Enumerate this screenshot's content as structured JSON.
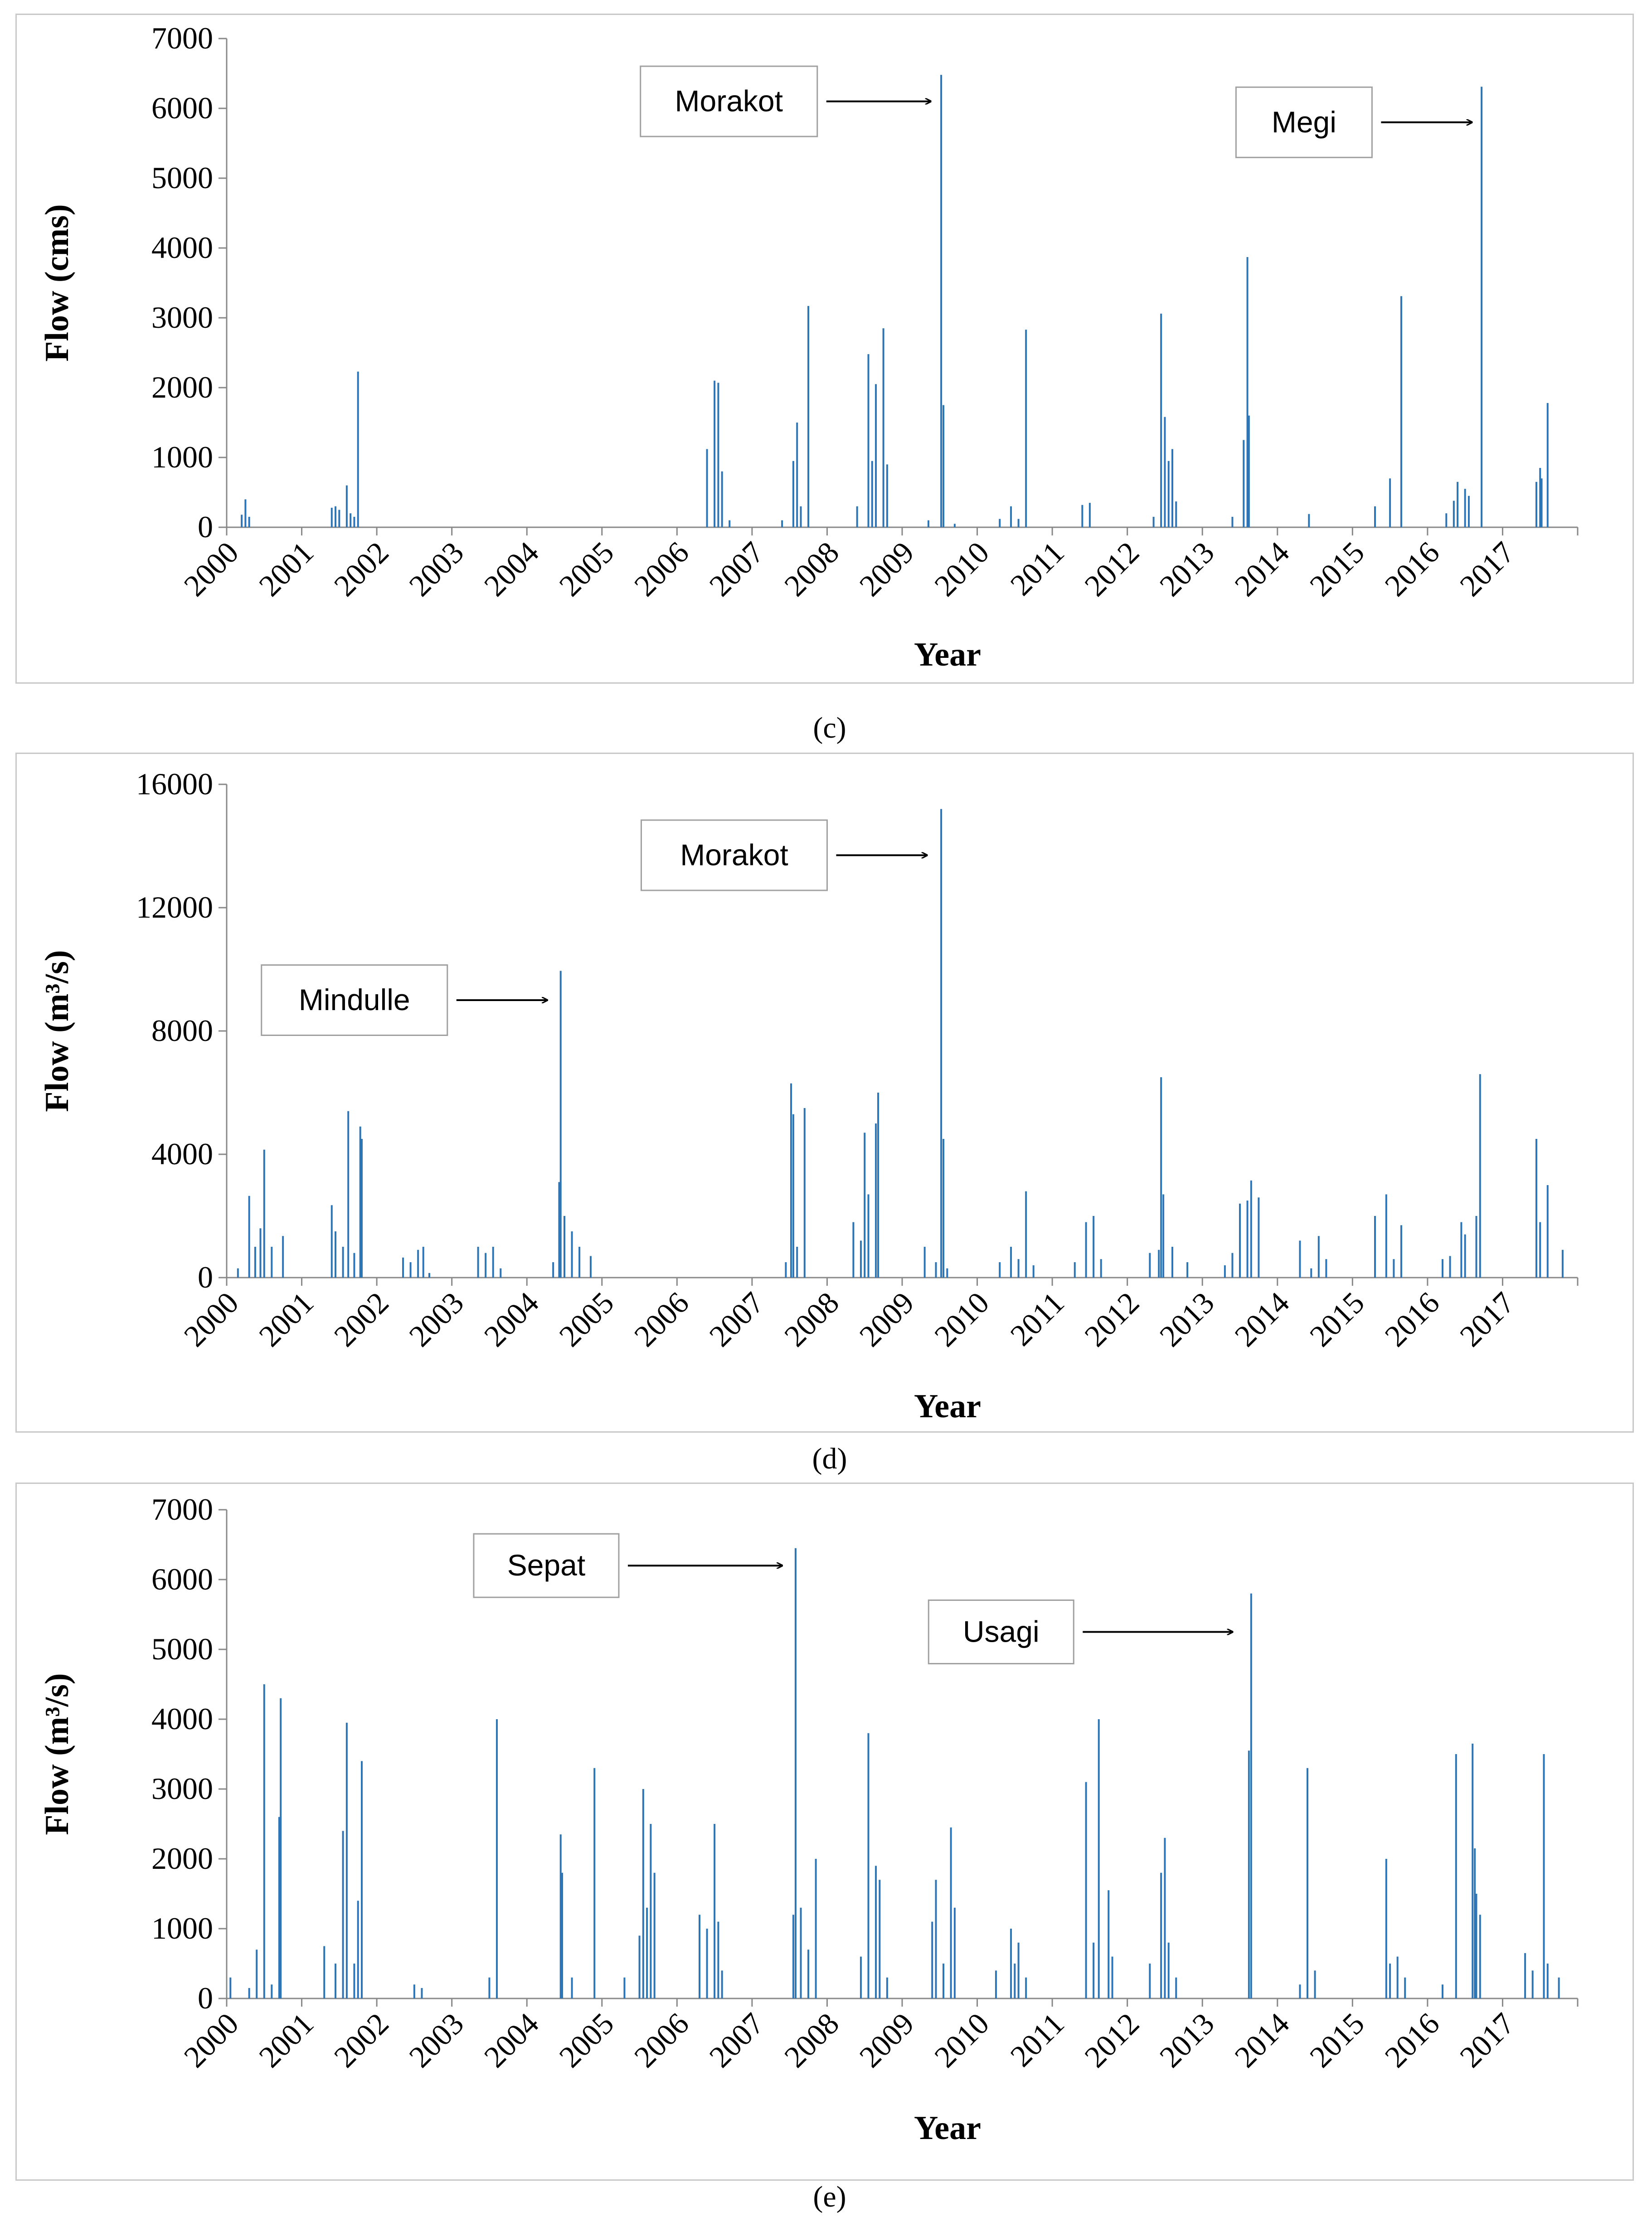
{
  "series_color": "#2e75b6",
  "chart_data": [
    {
      "type": "bar",
      "panel_label": "(c)",
      "xlabel": "Year",
      "ylabel": "Flow (cms)",
      "ylim": [
        0,
        7000
      ],
      "yticks": [
        "0",
        "1000",
        "2000",
        "3000",
        "4000",
        "5000",
        "6000",
        "7000"
      ],
      "xlim": [
        2000,
        2018
      ],
      "year_labels": [
        "2000",
        "2001",
        "2002",
        "2003",
        "2004",
        "2005",
        "2006",
        "2007",
        "2008",
        "2009",
        "2010",
        "2011",
        "2012",
        "2013",
        "2014",
        "2015",
        "2016",
        "2017"
      ],
      "annotations": [
        {
          "text": "Morakot",
          "x": 2009.53,
          "y": 6100
        },
        {
          "text": "Megi",
          "x": 2016.74,
          "y": 5800
        }
      ],
      "peaks": [
        [
          2000.2,
          180
        ],
        [
          2000.25,
          400
        ],
        [
          2000.3,
          150
        ],
        [
          2001.4,
          280
        ],
        [
          2001.45,
          300
        ],
        [
          2001.5,
          250
        ],
        [
          2001.6,
          600
        ],
        [
          2001.65,
          200
        ],
        [
          2001.7,
          150
        ],
        [
          2001.75,
          2230
        ],
        [
          2006.4,
          1120
        ],
        [
          2006.5,
          2100
        ],
        [
          2006.55,
          2070
        ],
        [
          2006.6,
          800
        ],
        [
          2006.7,
          100
        ],
        [
          2007.4,
          100
        ],
        [
          2007.55,
          950
        ],
        [
          2007.6,
          1500
        ],
        [
          2007.65,
          300
        ],
        [
          2007.75,
          3170
        ],
        [
          2008.4,
          300
        ],
        [
          2008.55,
          2480
        ],
        [
          2008.6,
          950
        ],
        [
          2008.65,
          2050
        ],
        [
          2008.75,
          2850
        ],
        [
          2008.8,
          900
        ],
        [
          2009.35,
          100
        ],
        [
          2009.52,
          6480
        ],
        [
          2009.55,
          1750
        ],
        [
          2009.7,
          50
        ],
        [
          2010.3,
          120
        ],
        [
          2010.45,
          300
        ],
        [
          2010.55,
          120
        ],
        [
          2010.65,
          2830
        ],
        [
          2011.4,
          320
        ],
        [
          2011.5,
          350
        ],
        [
          2012.35,
          150
        ],
        [
          2012.45,
          3060
        ],
        [
          2012.5,
          1580
        ],
        [
          2012.55,
          950
        ],
        [
          2012.6,
          1120
        ],
        [
          2012.65,
          370
        ],
        [
          2013.4,
          150
        ],
        [
          2013.55,
          1250
        ],
        [
          2013.6,
          3870
        ],
        [
          2013.62,
          1600
        ],
        [
          2014.42,
          190
        ],
        [
          2015.3,
          300
        ],
        [
          2015.5,
          700
        ],
        [
          2015.65,
          3310
        ],
        [
          2016.25,
          200
        ],
        [
          2016.35,
          380
        ],
        [
          2016.4,
          650
        ],
        [
          2016.5,
          550
        ],
        [
          2016.55,
          450
        ],
        [
          2016.72,
          6310
        ],
        [
          2017.45,
          650
        ],
        [
          2017.5,
          850
        ],
        [
          2017.52,
          700
        ],
        [
          2017.6,
          1780
        ]
      ]
    },
    {
      "type": "bar",
      "panel_label": "(d)",
      "xlabel": "Year",
      "ylabel": "Flow (m³/s)",
      "ylim": [
        0,
        16000
      ],
      "yticks": [
        "0",
        "4000",
        "8000",
        "12000",
        "16000"
      ],
      "xlim": [
        2000,
        2018
      ],
      "year_labels": [
        "2000",
        "2001",
        "2002",
        "2003",
        "2004",
        "2005",
        "2006",
        "2007",
        "2008",
        "2009",
        "2010",
        "2011",
        "2012",
        "2013",
        "2014",
        "2015",
        "2016",
        "2017"
      ],
      "annotations": [
        {
          "text": "Mindulle",
          "x": 2004.42,
          "y": 9000
        },
        {
          "text": "Morakot",
          "x": 2009.48,
          "y": 13700
        }
      ],
      "peaks": [
        [
          2000.15,
          300
        ],
        [
          2000.3,
          2650
        ],
        [
          2000.38,
          1000
        ],
        [
          2000.45,
          1600
        ],
        [
          2000.5,
          4150
        ],
        [
          2000.6,
          1000
        ],
        [
          2000.75,
          1350
        ],
        [
          2001.4,
          2350
        ],
        [
          2001.45,
          1500
        ],
        [
          2001.55,
          1000
        ],
        [
          2001.62,
          5400
        ],
        [
          2001.7,
          800
        ],
        [
          2001.78,
          4900
        ],
        [
          2001.8,
          4500
        ],
        [
          2002.35,
          650
        ],
        [
          2002.45,
          500
        ],
        [
          2002.55,
          900
        ],
        [
          2002.62,
          1000
        ],
        [
          2002.7,
          150
        ],
        [
          2003.35,
          1000
        ],
        [
          2003.45,
          800
        ],
        [
          2003.55,
          1000
        ],
        [
          2003.65,
          300
        ],
        [
          2004.35,
          500
        ],
        [
          2004.43,
          3100
        ],
        [
          2004.45,
          9950
        ],
        [
          2004.5,
          2000
        ],
        [
          2004.6,
          1500
        ],
        [
          2004.7,
          1000
        ],
        [
          2004.85,
          700
        ],
        [
          2007.45,
          500
        ],
        [
          2007.52,
          6300
        ],
        [
          2007.55,
          5300
        ],
        [
          2007.6,
          1000
        ],
        [
          2007.7,
          5500
        ],
        [
          2008.35,
          1800
        ],
        [
          2008.45,
          1200
        ],
        [
          2008.5,
          4700
        ],
        [
          2008.55,
          2700
        ],
        [
          2008.65,
          5000
        ],
        [
          2008.68,
          6000
        ],
        [
          2009.3,
          1000
        ],
        [
          2009.45,
          500
        ],
        [
          2009.52,
          15200
        ],
        [
          2009.55,
          4500
        ],
        [
          2009.6,
          300
        ],
        [
          2010.3,
          500
        ],
        [
          2010.45,
          1000
        ],
        [
          2010.55,
          600
        ],
        [
          2010.65,
          2800
        ],
        [
          2010.75,
          400
        ],
        [
          2011.3,
          500
        ],
        [
          2011.45,
          1800
        ],
        [
          2011.55,
          2000
        ],
        [
          2011.65,
          600
        ],
        [
          2012.3,
          800
        ],
        [
          2012.42,
          900
        ],
        [
          2012.45,
          6500
        ],
        [
          2012.48,
          2700
        ],
        [
          2012.6,
          1000
        ],
        [
          2012.8,
          500
        ],
        [
          2013.3,
          400
        ],
        [
          2013.4,
          800
        ],
        [
          2013.5,
          2400
        ],
        [
          2013.6,
          2500
        ],
        [
          2013.65,
          3150
        ],
        [
          2013.75,
          2600
        ],
        [
          2014.3,
          1200
        ],
        [
          2014.45,
          300
        ],
        [
          2014.55,
          1350
        ],
        [
          2014.65,
          600
        ],
        [
          2015.3,
          2000
        ],
        [
          2015.45,
          2700
        ],
        [
          2015.55,
          600
        ],
        [
          2015.65,
          1700
        ],
        [
          2016.2,
          600
        ],
        [
          2016.3,
          700
        ],
        [
          2016.45,
          1800
        ],
        [
          2016.5,
          1400
        ],
        [
          2016.65,
          2000
        ],
        [
          2016.7,
          6600
        ],
        [
          2017.45,
          4500
        ],
        [
          2017.5,
          1800
        ],
        [
          2017.6,
          3000
        ],
        [
          2017.8,
          900
        ]
      ]
    },
    {
      "type": "bar",
      "panel_label": "(e)",
      "xlabel": "Year",
      "ylabel": "Flow (m³/s)",
      "ylim": [
        0,
        7000
      ],
      "yticks": [
        "0",
        "1000",
        "2000",
        "3000",
        "4000",
        "5000",
        "6000",
        "7000"
      ],
      "xlim": [
        2000,
        2018
      ],
      "year_labels": [
        "2000",
        "2001",
        "2002",
        "2003",
        "2004",
        "2005",
        "2006",
        "2007",
        "2008",
        "2009",
        "2010",
        "2011",
        "2012",
        "2013",
        "2014",
        "2015",
        "2016",
        "2017"
      ],
      "annotations": [
        {
          "text": "Sepat",
          "x": 2007.55,
          "y": 6200
        },
        {
          "text": "Usagi",
          "x": 2013.55,
          "y": 5250
        }
      ],
      "peaks": [
        [
          2000.05,
          300
        ],
        [
          2000.3,
          150
        ],
        [
          2000.4,
          700
        ],
        [
          2000.5,
          4500
        ],
        [
          2000.6,
          200
        ],
        [
          2000.7,
          2600
        ],
        [
          2000.72,
          4300
        ],
        [
          2001.3,
          750
        ],
        [
          2001.45,
          500
        ],
        [
          2001.55,
          2400
        ],
        [
          2001.6,
          3950
        ],
        [
          2001.7,
          500
        ],
        [
          2001.75,
          1400
        ],
        [
          2001.8,
          3400
        ],
        [
          2002.5,
          200
        ],
        [
          2002.6,
          150
        ],
        [
          2003.5,
          300
        ],
        [
          2003.6,
          4000
        ],
        [
          2004.45,
          2350
        ],
        [
          2004.47,
          1800
        ],
        [
          2004.6,
          300
        ],
        [
          2004.9,
          3300
        ],
        [
          2005.3,
          300
        ],
        [
          2005.5,
          900
        ],
        [
          2005.55,
          3000
        ],
        [
          2005.6,
          1300
        ],
        [
          2005.65,
          2500
        ],
        [
          2005.7,
          1800
        ],
        [
          2006.3,
          1200
        ],
        [
          2006.4,
          1000
        ],
        [
          2006.5,
          2500
        ],
        [
          2006.55,
          1100
        ],
        [
          2006.6,
          400
        ],
        [
          2007.55,
          1200
        ],
        [
          2007.58,
          6450
        ],
        [
          2007.65,
          1300
        ],
        [
          2007.75,
          700
        ],
        [
          2007.85,
          2000
        ],
        [
          2008.45,
          600
        ],
        [
          2008.55,
          3800
        ],
        [
          2008.65,
          1900
        ],
        [
          2008.7,
          1700
        ],
        [
          2008.8,
          300
        ],
        [
          2009.4,
          1100
        ],
        [
          2009.45,
          1700
        ],
        [
          2009.55,
          500
        ],
        [
          2009.65,
          2450
        ],
        [
          2009.7,
          1300
        ],
        [
          2010.25,
          400
        ],
        [
          2010.45,
          1000
        ],
        [
          2010.5,
          500
        ],
        [
          2010.55,
          800
        ],
        [
          2010.65,
          300
        ],
        [
          2011.45,
          3100
        ],
        [
          2011.55,
          800
        ],
        [
          2011.62,
          4000
        ],
        [
          2011.75,
          1550
        ],
        [
          2011.8,
          600
        ],
        [
          2012.3,
          500
        ],
        [
          2012.45,
          1800
        ],
        [
          2012.5,
          2300
        ],
        [
          2012.55,
          800
        ],
        [
          2012.65,
          300
        ],
        [
          2013.62,
          3550
        ],
        [
          2013.65,
          5800
        ],
        [
          2014.3,
          200
        ],
        [
          2014.4,
          3300
        ],
        [
          2014.5,
          400
        ],
        [
          2015.45,
          2000
        ],
        [
          2015.5,
          500
        ],
        [
          2015.6,
          600
        ],
        [
          2015.7,
          300
        ],
        [
          2016.2,
          200
        ],
        [
          2016.38,
          3500
        ],
        [
          2016.6,
          3650
        ],
        [
          2016.63,
          2150
        ],
        [
          2016.65,
          1500
        ],
        [
          2016.7,
          1200
        ],
        [
          2017.3,
          650
        ],
        [
          2017.4,
          400
        ],
        [
          2017.55,
          3500
        ],
        [
          2017.6,
          500
        ],
        [
          2017.75,
          300
        ]
      ]
    }
  ]
}
